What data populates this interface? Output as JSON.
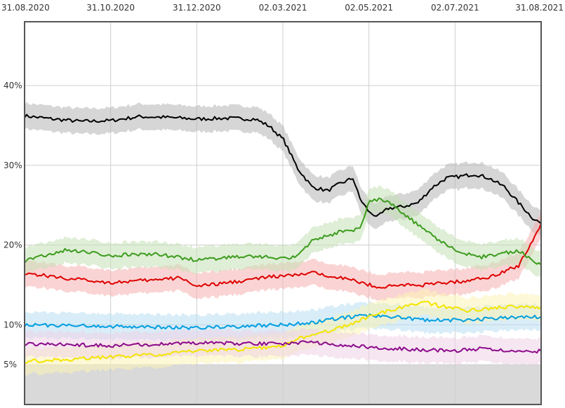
{
  "chart_data": {
    "type": "line",
    "x_ticks": [
      "31.08.2020",
      "31.10.2020",
      "31.12.2020",
      "02.03.2021",
      "02.05.2021",
      "02.07.2021",
      "31.08.2021"
    ],
    "y_ticks": [
      "5%",
      "10%",
      "20%",
      "30%",
      "40%"
    ],
    "y_tick_values": [
      5,
      10,
      20,
      30,
      40
    ],
    "xlim": [
      "2020-08-31",
      "2021-08-31"
    ],
    "ylim": [
      0,
      48
    ],
    "threshold": 5,
    "grid": true,
    "series": [
      {
        "color": "#000000",
        "band_color": "#b4b4b4",
        "x": [
          "2020-08-31",
          "2020-09-20",
          "2020-10-10",
          "2020-10-31",
          "2020-11-20",
          "2020-12-10",
          "2020-12-31",
          "2021-01-20",
          "2021-02-10",
          "2021-02-20",
          "2021-03-02",
          "2021-03-12",
          "2021-03-22",
          "2021-04-02",
          "2021-04-10",
          "2021-04-20",
          "2021-04-25",
          "2021-05-02",
          "2021-05-08",
          "2021-05-15",
          "2021-05-25",
          "2021-06-05",
          "2021-06-15",
          "2021-06-25",
          "2021-07-05",
          "2021-07-15",
          "2021-07-25",
          "2021-08-05",
          "2021-08-15",
          "2021-08-25",
          "2021-08-31"
        ],
        "values": [
          36.2,
          35.8,
          35.5,
          35.6,
          36.1,
          36.0,
          35.8,
          35.9,
          35.8,
          34.9,
          33.2,
          29.6,
          27.3,
          26.8,
          27.6,
          28.4,
          25.8,
          24.0,
          23.6,
          24.6,
          24.8,
          25.3,
          27.2,
          28.4,
          28.6,
          28.9,
          28.4,
          27.3,
          25.3,
          23.4,
          22.7
        ]
      },
      {
        "color": "#de0000",
        "band_color": "#f5b0b0",
        "x": [
          "2020-08-31",
          "2020-09-30",
          "2020-10-31",
          "2020-11-30",
          "2020-12-20",
          "2020-12-31",
          "2021-01-10",
          "2021-01-31",
          "2021-02-20",
          "2021-03-10",
          "2021-03-22",
          "2021-04-10",
          "2021-05-02",
          "2021-05-10",
          "2021-05-25",
          "2021-06-10",
          "2021-06-25",
          "2021-07-10",
          "2021-07-25",
          "2021-08-05",
          "2021-08-15",
          "2021-08-25",
          "2021-08-31"
        ],
        "values": [
          16.5,
          15.8,
          15.3,
          15.6,
          15.9,
          14.8,
          15.0,
          15.5,
          16.0,
          16.2,
          16.5,
          16.0,
          15.0,
          14.7,
          15.0,
          15.0,
          15.3,
          15.5,
          16.0,
          16.7,
          17.4,
          20.6,
          22.7
        ]
      },
      {
        "color": "#3c9c1e",
        "band_color": "#c5e0b4",
        "x": [
          "2020-08-31",
          "2020-09-30",
          "2020-10-31",
          "2020-11-30",
          "2020-12-31",
          "2021-01-31",
          "2021-02-28",
          "2021-03-10",
          "2021-03-22",
          "2021-04-10",
          "2021-04-25",
          "2021-05-02",
          "2021-05-10",
          "2021-05-20",
          "2021-06-05",
          "2021-06-20",
          "2021-07-05",
          "2021-07-20",
          "2021-08-05",
          "2021-08-15",
          "2021-08-25",
          "2021-08-31"
        ],
        "values": [
          18.0,
          19.4,
          18.7,
          18.9,
          18.1,
          18.6,
          18.4,
          18.5,
          20.5,
          21.6,
          22.0,
          25.6,
          25.8,
          24.8,
          22.5,
          20.5,
          19.0,
          18.5,
          19.0,
          19.3,
          18.0,
          17.5
        ]
      },
      {
        "color": "#009ee0",
        "band_color": "#b8dff2",
        "x": [
          "2020-08-31",
          "2020-10-31",
          "2020-12-31",
          "2021-02-28",
          "2021-03-20",
          "2021-04-10",
          "2021-05-02",
          "2021-05-20",
          "2021-06-10",
          "2021-07-10",
          "2021-08-10",
          "2021-08-31"
        ],
        "values": [
          10.0,
          9.8,
          9.6,
          10.0,
          10.2,
          10.8,
          11.2,
          11.0,
          10.6,
          10.6,
          10.9,
          11.0
        ]
      },
      {
        "color": "#f2e500",
        "band_color": "#fbf3b4",
        "x": [
          "2020-08-31",
          "2020-09-30",
          "2020-10-31",
          "2020-11-30",
          "2020-12-31",
          "2021-01-31",
          "2021-02-28",
          "2021-03-15",
          "2021-04-02",
          "2021-04-20",
          "2021-05-02",
          "2021-05-20",
          "2021-06-10",
          "2021-06-25",
          "2021-07-10",
          "2021-07-25",
          "2021-08-10",
          "2021-08-31"
        ],
        "values": [
          5.4,
          5.6,
          6.0,
          6.2,
          6.7,
          6.9,
          7.3,
          8.4,
          9.2,
          10.2,
          11.1,
          12.0,
          12.8,
          12.2,
          11.8,
          12.0,
          12.3,
          12.2
        ]
      },
      {
        "color": "#8c0a8c",
        "band_color": "#eed2e6",
        "x": [
          "2020-08-31",
          "2020-10-31",
          "2020-12-31",
          "2021-02-28",
          "2021-03-20",
          "2021-04-10",
          "2021-05-02",
          "2021-06-01",
          "2021-07-01",
          "2021-07-20",
          "2021-08-10",
          "2021-08-31"
        ],
        "values": [
          7.6,
          7.4,
          7.7,
          7.6,
          7.8,
          7.5,
          7.2,
          6.9,
          6.7,
          7.0,
          6.7,
          6.7
        ]
      }
    ]
  }
}
